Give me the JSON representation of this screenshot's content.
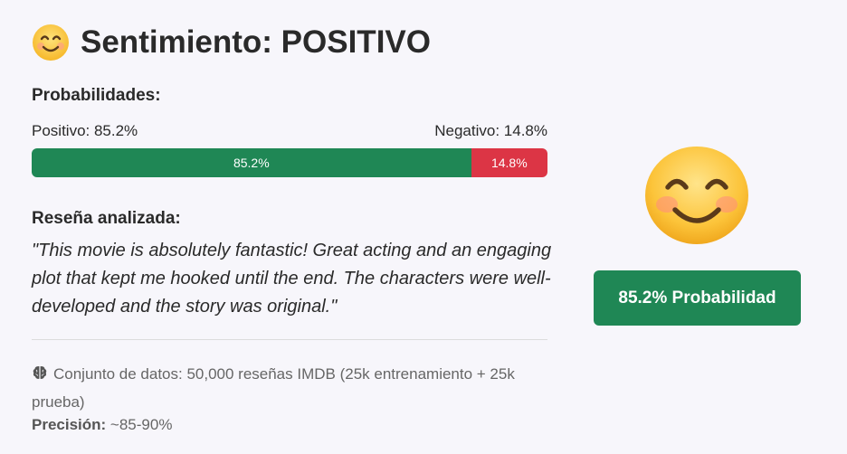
{
  "header": {
    "emoji_icon": "smiling-face-icon",
    "title": "Sentimiento: POSITIVO"
  },
  "probabilities": {
    "heading": "Probabilidades:",
    "positive_label": "Positivo: 85.2%",
    "negative_label": "Negativo: 14.8%",
    "positive_fraction": 0.852,
    "negative_fraction": 0.148,
    "positive_bar_text": "85.2%",
    "negative_bar_text": "14.8%",
    "positive_color": "#1f8755",
    "negative_color": "#dc3545"
  },
  "review": {
    "heading": "Reseña analizada:",
    "text": "\"This movie is absolutely fantastic! Great acting and an engaging plot that kept me hooked until the end. The characters were well-developed and the story was original.\""
  },
  "info": {
    "dataset_icon": "brain-icon",
    "dataset_text": "Conjunto de datos: 50,000 reseñas IMDB (25k entrenamiento + 25k prueba)",
    "precision_label": "Precisión:",
    "precision_value": " ~85-90%"
  },
  "result_panel": {
    "emoji_icon": "smiling-face-icon",
    "probability_button": "85.2% Probabilidad",
    "accent": "#1f8755"
  }
}
